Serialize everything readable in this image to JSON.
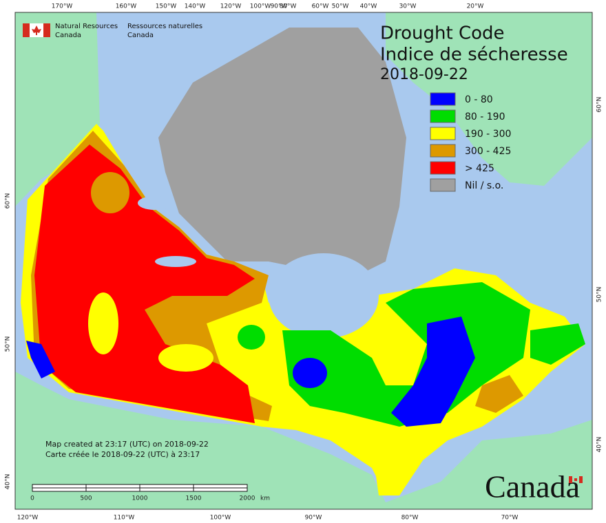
{
  "logo": {
    "english": [
      "Natural Resources",
      "Canada"
    ],
    "french": [
      "Ressources naturelles",
      "Canada"
    ]
  },
  "title": {
    "english": "Drought Code",
    "french": "Indice de sécheresse",
    "date": "2018-09-22"
  },
  "legend": [
    {
      "label": "0 - 80",
      "color": "#0000ff"
    },
    {
      "label": "80 - 190",
      "color": "#00dd00"
    },
    {
      "label": "190 - 300",
      "color": "#ffff00"
    },
    {
      "label": "300 - 425",
      "color": "#dd9900"
    },
    {
      "label": "> 425",
      "color": "#ff0000"
    },
    {
      "label": "Nil / s.o.",
      "color": "#a0a0a0"
    }
  ],
  "top_labels": [
    "170°W",
    "160°W",
    "150°W",
    "140°W",
    "120°W",
    "100°W",
    "90°W",
    "80°W",
    "60°W",
    "50°W",
    "40°W",
    "30°W",
    "20°W"
  ],
  "bottom_labels": [
    "120°W",
    "110°W",
    "100°W",
    "90°W",
    "80°W",
    "70°W"
  ],
  "left_labels": [
    "60°N",
    "50°N",
    "40°N"
  ],
  "right_labels": [
    "60°N",
    "50°N",
    "40°N"
  ],
  "notes": [
    "Map created at 23:17 (UTC) on 2018-09-22",
    "Carte créée le 2018-09-22 (UTC) à 23:17"
  ],
  "scale_bar": {
    "labels": [
      "0",
      "500",
      "1000",
      "1500",
      "2000"
    ],
    "unit": "km"
  },
  "wordmark": "Canada"
}
